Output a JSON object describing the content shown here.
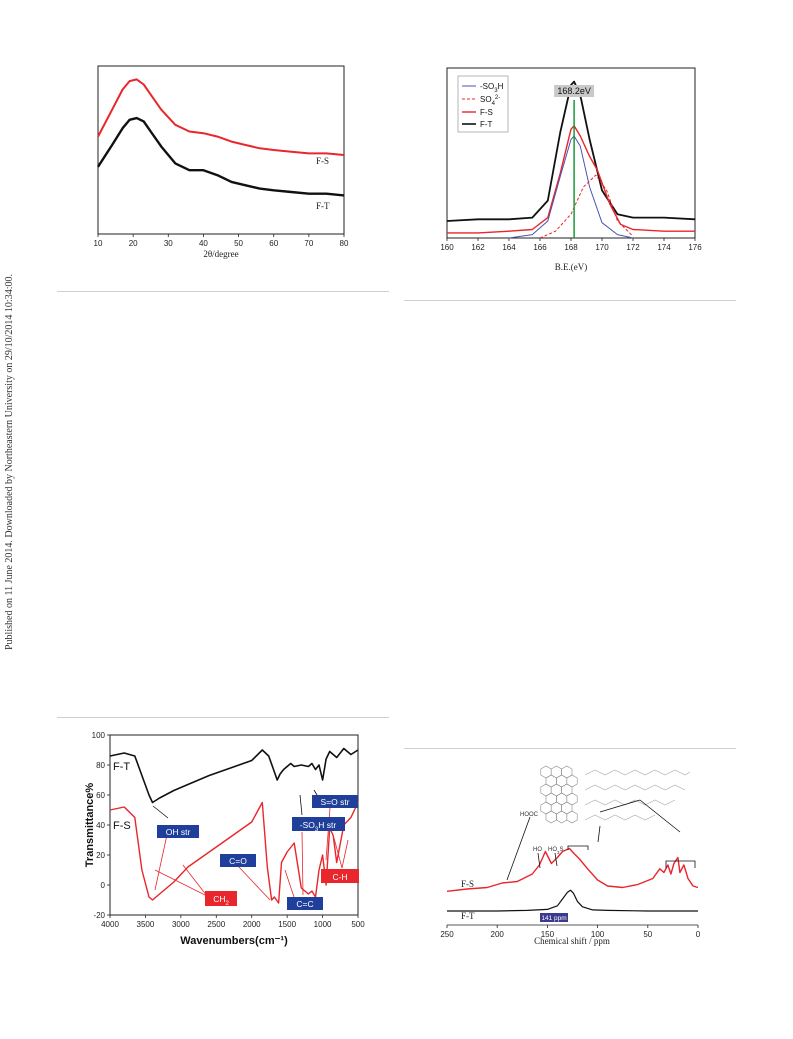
{
  "side_note": "Published on 11 June 2014. Downloaded by Northeastern University on 29/10/2014 10:34:00.",
  "colors": {
    "red": "#e8262b",
    "black": "#111111",
    "blue": "#4a55b0",
    "green": "#1a9a3a",
    "label_blue": "#1f3f9a",
    "label_red": "#e8262b"
  },
  "chart_data": [
    {
      "id": "xrd",
      "type": "line",
      "xlabel": "2θ/degree",
      "ylabel": "",
      "xlim": [
        10,
        80
      ],
      "xticks": [
        "10",
        "20",
        "30",
        "40",
        "50",
        "60",
        "70",
        "80"
      ],
      "series": [
        {
          "name": "F-S",
          "x": [
            10,
            14,
            17,
            19,
            21,
            23,
            25,
            28,
            32,
            36,
            40,
            44,
            48,
            52,
            56,
            60,
            65,
            70,
            75,
            80
          ],
          "y": [
            58,
            74,
            86,
            91,
            92,
            89,
            83,
            74,
            65,
            61,
            60,
            58,
            55,
            53,
            51,
            50,
            49,
            48,
            48,
            47
          ]
        },
        {
          "name": "F-T",
          "x": [
            10,
            14,
            17,
            19,
            21,
            23,
            25,
            28,
            32,
            36,
            40,
            44,
            48,
            52,
            56,
            60,
            65,
            70,
            75,
            80
          ],
          "y": [
            40,
            53,
            63,
            68,
            69,
            67,
            61,
            52,
            42,
            38,
            38,
            35,
            31,
            29,
            27,
            26,
            25,
            24,
            24,
            23
          ]
        }
      ]
    },
    {
      "id": "xps",
      "type": "line",
      "xlabel": "B.E.(eV)",
      "ylabel": "",
      "xlim": [
        160,
        176
      ],
      "xticks": [
        "160",
        "162",
        "164",
        "166",
        "168",
        "170",
        "172",
        "174",
        "176"
      ],
      "annotation": "168.2eV",
      "peak_x": 168.2,
      "legend": [
        "-SO3H",
        "SO42-",
        "F-S",
        "F-T"
      ],
      "series": [
        {
          "name": "F-T",
          "x": [
            160,
            162,
            164,
            165.5,
            166.5,
            167.3,
            168,
            168.2,
            168.6,
            169.2,
            170,
            171,
            172,
            174,
            176
          ],
          "y": [
            10,
            11,
            11,
            12,
            22,
            62,
            90,
            92,
            84,
            58,
            28,
            14,
            12,
            12,
            11
          ]
        },
        {
          "name": "F-S",
          "x": [
            160,
            162,
            164,
            165.5,
            166.5,
            167.3,
            168,
            168.2,
            168.6,
            169.2,
            169.7,
            170.5,
            171.2,
            172,
            174,
            176
          ],
          "y": [
            3,
            3,
            4,
            5,
            12,
            38,
            64,
            66,
            60,
            48,
            40,
            20,
            8,
            5,
            4,
            4
          ]
        },
        {
          "name": "-SO3H",
          "x": [
            164,
            165.5,
            166.5,
            167.3,
            168,
            168.2,
            168.6,
            169.2,
            170,
            171,
            172
          ],
          "y": [
            0,
            2,
            10,
            36,
            58,
            60,
            54,
            30,
            9,
            2,
            0
          ]
        },
        {
          "name": "SO42-",
          "x": [
            166,
            167,
            168,
            168.8,
            169.6,
            170.3,
            171,
            172
          ],
          "y": [
            0,
            4,
            14,
            30,
            37,
            28,
            10,
            1
          ]
        }
      ]
    },
    {
      "id": "ftir",
      "type": "line",
      "xlabel": "Wavenumbers(cm⁻¹)",
      "ylabel": "Transmittance%",
      "xlim": [
        4000,
        500
      ],
      "ylim": [
        -20,
        100
      ],
      "xticks": [
        "4000",
        "3500",
        "3000",
        "2500",
        "2000",
        "1500",
        "1000",
        "500"
      ],
      "yticks": [
        "100",
        "80",
        "60",
        "40",
        "20",
        "0",
        "-20"
      ],
      "labels_blue": [
        "OH str",
        "C=O",
        "-SO3H str",
        "S=O str",
        "C=C"
      ],
      "labels_red": [
        "CH2",
        "C-H"
      ],
      "series": [
        {
          "name": "F-T",
          "x": [
            4000,
            3800,
            3650,
            3550,
            3450,
            3400,
            3300,
            3100,
            2900,
            2600,
            2300,
            2000,
            1850,
            1760,
            1700,
            1640,
            1600,
            1550,
            1450,
            1400,
            1300,
            1200,
            1150,
            1100,
            1050,
            1000,
            950,
            900,
            800,
            700,
            600,
            500
          ],
          "y": [
            86,
            88,
            86,
            73,
            60,
            55,
            58,
            63,
            67,
            73,
            78,
            83,
            90,
            86,
            78,
            70,
            74,
            77,
            81,
            79,
            80,
            79,
            81,
            77,
            80,
            70,
            84,
            89,
            85,
            91,
            87,
            90
          ]
        },
        {
          "name": "F-S",
          "x": [
            4000,
            3800,
            3650,
            3550,
            3450,
            3400,
            3300,
            3100,
            2900,
            2600,
            2300,
            2000,
            1850,
            1780,
            1720,
            1680,
            1620,
            1580,
            1500,
            1400,
            1300,
            1200,
            1150,
            1100,
            1050,
            1000,
            950,
            900,
            850,
            800,
            700,
            600,
            500
          ],
          "y": [
            50,
            52,
            45,
            10,
            -8,
            -10,
            -6,
            2,
            12,
            22,
            32,
            42,
            55,
            12,
            -10,
            -8,
            -12,
            15,
            22,
            28,
            -2,
            -6,
            -4,
            -8,
            10,
            20,
            0,
            38,
            33,
            15,
            40,
            45,
            55
          ]
        }
      ]
    },
    {
      "id": "nmr",
      "type": "line",
      "xlabel": "Chemical shift / ppm",
      "ylabel": "",
      "xlim": [
        250,
        0
      ],
      "xticks": [
        "250",
        "200",
        "150",
        "100",
        "50",
        "0"
      ],
      "marker": "141 ppm",
      "structure_labels": [
        "HOOC",
        "HO",
        "HO3S"
      ],
      "series": [
        {
          "name": "F-S",
          "x": [
            250,
            230,
            210,
            195,
            180,
            165,
            158,
            152,
            146,
            140,
            135,
            128,
            124,
            118,
            110,
            100,
            90,
            75,
            60,
            45,
            38,
            34,
            30,
            27,
            24,
            20,
            18,
            14,
            10,
            5,
            0
          ],
          "y": [
            5,
            8,
            10,
            16,
            18,
            28,
            40,
            58,
            42,
            50,
            58,
            62,
            56,
            48,
            35,
            20,
            12,
            10,
            14,
            22,
            35,
            30,
            40,
            28,
            42,
            50,
            30,
            40,
            22,
            12,
            10
          ]
        },
        {
          "name": "F-T",
          "x": [
            250,
            200,
            170,
            150,
            140,
            135,
            130,
            127,
            124,
            120,
            115,
            105,
            90,
            50,
            0
          ],
          "y": [
            2,
            2,
            3,
            5,
            12,
            25,
            38,
            42,
            36,
            20,
            10,
            4,
            3,
            2,
            2
          ]
        }
      ]
    }
  ]
}
